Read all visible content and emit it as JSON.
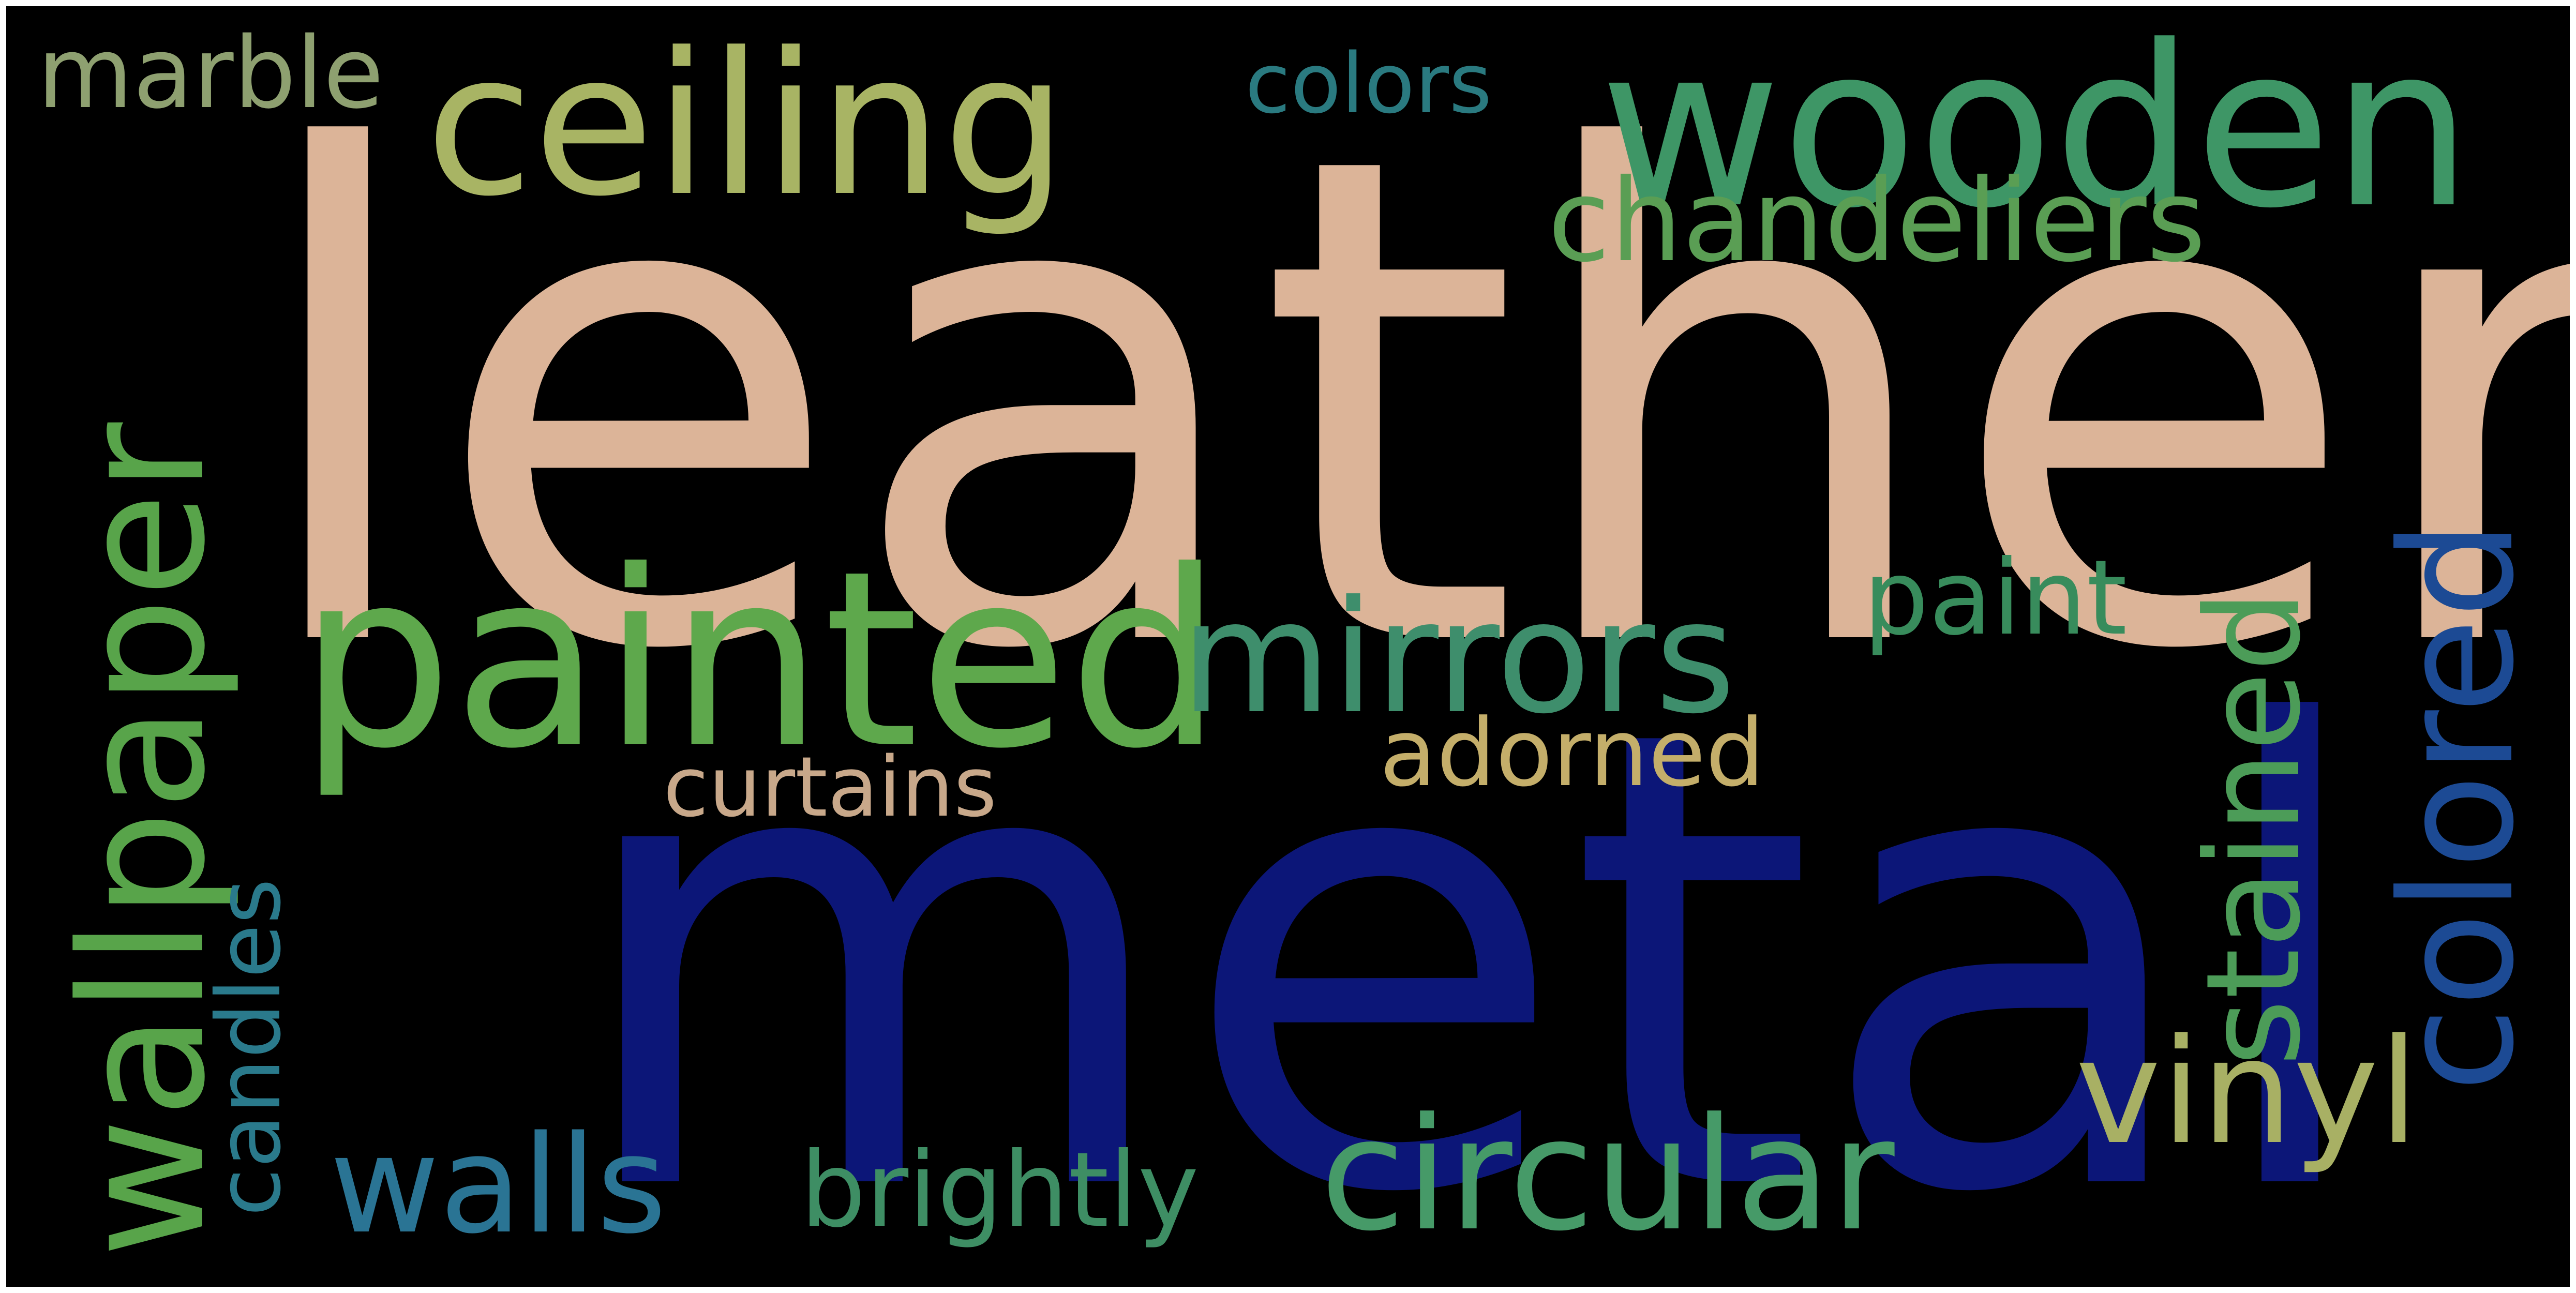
{
  "cloud": {
    "background": "#000000",
    "frame_color": "#ffffff",
    "words": [
      {
        "text": "leather",
        "color": "#dcb498"
      },
      {
        "text": "metal",
        "color": "#0c1678"
      },
      {
        "text": "painted",
        "color": "#5ea84c"
      },
      {
        "text": "ceiling",
        "color": "#a8b464"
      },
      {
        "text": "wooden",
        "color": "#3e9666"
      },
      {
        "text": "wallpaper",
        "color": "#58a44a"
      },
      {
        "text": "colored",
        "color": "#1c4a94"
      },
      {
        "text": "mirrors",
        "color": "#3e8e6c"
      },
      {
        "text": "chandeliers",
        "color": "#5a9e54"
      },
      {
        "text": "stained",
        "color": "#4c9c58"
      },
      {
        "text": "vinyl",
        "color": "#a8b064"
      },
      {
        "text": "circular",
        "color": "#469a68"
      },
      {
        "text": "walls",
        "color": "#2a7494"
      },
      {
        "text": "brightly",
        "color": "#3e8e64"
      },
      {
        "text": "adorned",
        "color": "#c4ae6a"
      },
      {
        "text": "curtains",
        "color": "#c8a88a"
      },
      {
        "text": "candles",
        "color": "#2a7a8c"
      },
      {
        "text": "paint",
        "color": "#388c5c"
      },
      {
        "text": "marble",
        "color": "#8ea070"
      },
      {
        "text": "colors",
        "color": "#2a7a80"
      }
    ]
  }
}
